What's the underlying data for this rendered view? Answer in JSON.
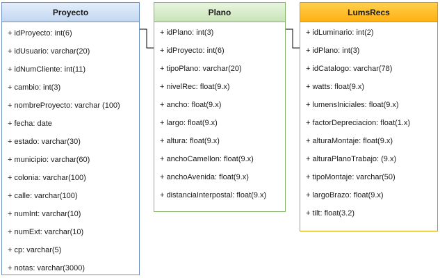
{
  "tables": [
    {
      "name": "Proyecto",
      "fields": [
        "+ idProyecto: int(6)",
        "+ idUsuario: varchar(20)",
        "+ idNumCliente: int(11)",
        "+ cambio: int(3)",
        "+ nombreProyecto: varchar (100)",
        "+ fecha: date",
        "+ estado: varchar(30)",
        "+ municipio: varchar(60)",
        "+ colonia: varchar(100)",
        "+ calle: varchar(100)",
        "+ numInt: varchar(10)",
        "+ numExt: varchar(10)",
        "+ cp: varchar(5)",
        "+ notas: varchar(3000)"
      ]
    },
    {
      "name": "Plano",
      "fields": [
        "+ idPlano: int(3)",
        "+ idProyecto: int(6)",
        "+ tipoPlano: varchar(20)",
        "+ nivelRec: float(9.x)",
        "+ ancho: float(9.x)",
        "+ largo: float(9.x)",
        "+ altura: float(9.x)",
        "+ anchoCamellon: float(9.x)",
        "+ anchoAvenida: float(9.x)",
        "+ distanciaInterpostal: float(9.x)"
      ]
    },
    {
      "name": "LumsRecs",
      "fields": [
        "+ idLuminario: int(2)",
        "+ idPlano: int(3)",
        "+ idCatalogo: varchar(78)",
        "+ watts: float(9.x)",
        "+ lumensIniciales: float(9.x)",
        "+ factorDepreciacion: float(1.x)",
        "+ alturaMontaje: float(9.x)",
        "+ alturaPlanoTrabajo: (9.x)",
        "+ tipoMontaje: varchar(50)",
        "+ largoBrazo: float(9.x)",
        "+ tilt: float(3.2)"
      ]
    }
  ],
  "colors": {
    "proyecto_border": "#6c8ebf",
    "plano_border": "#82b366",
    "lums_border": "#d79b00",
    "connector": "#000000"
  }
}
